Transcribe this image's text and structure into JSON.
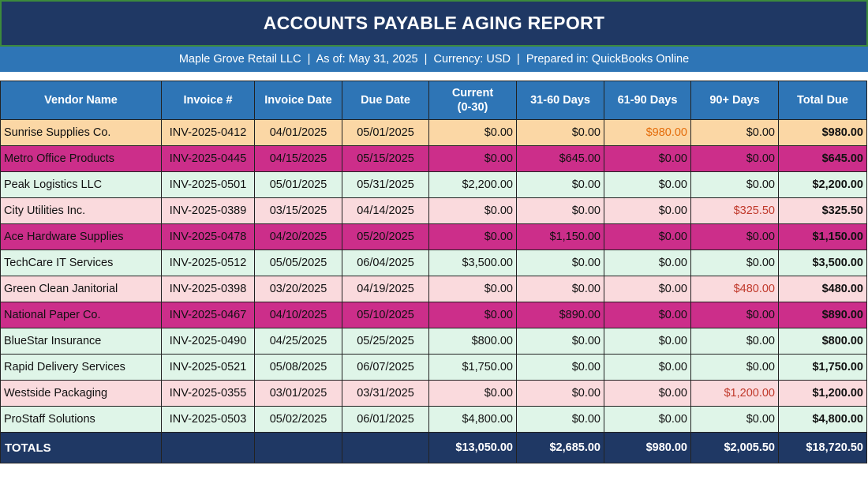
{
  "report": {
    "title": "ACCOUNTS PAYABLE AGING REPORT",
    "subtitle": "Maple Grove Retail LLC  |  As of: May 31, 2025  |  Currency: USD  |  Prepared in: QuickBooks Online"
  },
  "columns": [
    "Vendor Name",
    "Invoice #",
    "Invoice Date",
    "Due Date",
    "Current\n(0-30)",
    "31-60 Days",
    "61-90 Days",
    "90+ Days",
    "Total Due"
  ],
  "colors": {
    "title_bg": "#1f3864",
    "header_bg": "#2e75b6",
    "row_amber": "#fbd7a5",
    "row_magenta": "#cc2e8a",
    "row_mint": "#dff5e8",
    "row_pink": "#fadadd",
    "highlight_amber_text": "#e46c0a",
    "highlight_red_text": "#c0392b"
  },
  "rows": [
    {
      "vendor": "Sunrise Supplies Co.",
      "invoice": "INV-2025-0412",
      "invoice_date": "04/01/2025",
      "due_date": "05/01/2025",
      "current": "$0.00",
      "d31_60": "$0.00",
      "d61_90": "$980.00",
      "d90_plus": "$0.00",
      "total": "$980.00",
      "style": "amber",
      "highlight": "d61_90"
    },
    {
      "vendor": "Metro Office Products",
      "invoice": "INV-2025-0445",
      "invoice_date": "04/15/2025",
      "due_date": "05/15/2025",
      "current": "$0.00",
      "d31_60": "$645.00",
      "d61_90": "$0.00",
      "d90_plus": "$0.00",
      "total": "$645.00",
      "style": "magenta",
      "highlight": ""
    },
    {
      "vendor": "Peak Logistics LLC",
      "invoice": "INV-2025-0501",
      "invoice_date": "05/01/2025",
      "due_date": "05/31/2025",
      "current": "$2,200.00",
      "d31_60": "$0.00",
      "d61_90": "$0.00",
      "d90_plus": "$0.00",
      "total": "$2,200.00",
      "style": "mint",
      "highlight": ""
    },
    {
      "vendor": "City Utilities Inc.",
      "invoice": "INV-2025-0389",
      "invoice_date": "03/15/2025",
      "due_date": "04/14/2025",
      "current": "$0.00",
      "d31_60": "$0.00",
      "d61_90": "$0.00",
      "d90_plus": "$325.50",
      "total": "$325.50",
      "style": "pink",
      "highlight": "d90_plus"
    },
    {
      "vendor": "Ace Hardware Supplies",
      "invoice": "INV-2025-0478",
      "invoice_date": "04/20/2025",
      "due_date": "05/20/2025",
      "current": "$0.00",
      "d31_60": "$1,150.00",
      "d61_90": "$0.00",
      "d90_plus": "$0.00",
      "total": "$1,150.00",
      "style": "magenta",
      "highlight": ""
    },
    {
      "vendor": "TechCare IT Services",
      "invoice": "INV-2025-0512",
      "invoice_date": "05/05/2025",
      "due_date": "06/04/2025",
      "current": "$3,500.00",
      "d31_60": "$0.00",
      "d61_90": "$0.00",
      "d90_plus": "$0.00",
      "total": "$3,500.00",
      "style": "mint",
      "highlight": ""
    },
    {
      "vendor": "Green Clean Janitorial",
      "invoice": "INV-2025-0398",
      "invoice_date": "03/20/2025",
      "due_date": "04/19/2025",
      "current": "$0.00",
      "d31_60": "$0.00",
      "d61_90": "$0.00",
      "d90_plus": "$480.00",
      "total": "$480.00",
      "style": "pink",
      "highlight": "d90_plus"
    },
    {
      "vendor": "National Paper Co.",
      "invoice": "INV-2025-0467",
      "invoice_date": "04/10/2025",
      "due_date": "05/10/2025",
      "current": "$0.00",
      "d31_60": "$890.00",
      "d61_90": "$0.00",
      "d90_plus": "$0.00",
      "total": "$890.00",
      "style": "magenta",
      "highlight": ""
    },
    {
      "vendor": "BlueStar Insurance",
      "invoice": "INV-2025-0490",
      "invoice_date": "04/25/2025",
      "due_date": "05/25/2025",
      "current": "$800.00",
      "d31_60": "$0.00",
      "d61_90": "$0.00",
      "d90_plus": "$0.00",
      "total": "$800.00",
      "style": "mint",
      "highlight": ""
    },
    {
      "vendor": "Rapid Delivery Services",
      "invoice": "INV-2025-0521",
      "invoice_date": "05/08/2025",
      "due_date": "06/07/2025",
      "current": "$1,750.00",
      "d31_60": "$0.00",
      "d61_90": "$0.00",
      "d90_plus": "$0.00",
      "total": "$1,750.00",
      "style": "mint",
      "highlight": ""
    },
    {
      "vendor": "Westside Packaging",
      "invoice": "INV-2025-0355",
      "invoice_date": "03/01/2025",
      "due_date": "03/31/2025",
      "current": "$0.00",
      "d31_60": "$0.00",
      "d61_90": "$0.00",
      "d90_plus": "$1,200.00",
      "total": "$1,200.00",
      "style": "pink",
      "highlight": "d90_plus"
    },
    {
      "vendor": "ProStaff Solutions",
      "invoice": "INV-2025-0503",
      "invoice_date": "05/02/2025",
      "due_date": "06/01/2025",
      "current": "$4,800.00",
      "d31_60": "$0.00",
      "d61_90": "$0.00",
      "d90_plus": "$0.00",
      "total": "$4,800.00",
      "style": "mint",
      "highlight": ""
    }
  ],
  "totals": {
    "label": "TOTALS",
    "current": "$13,050.00",
    "d31_60": "$2,685.00",
    "d61_90": "$980.00",
    "d90_plus": "$2,005.50",
    "total": "$18,720.50"
  }
}
